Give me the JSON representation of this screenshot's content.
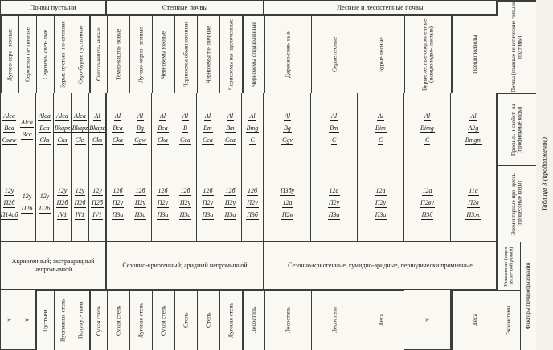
{
  "caption": "Таблица 3 (продолжение)",
  "groups": [
    {
      "label": "Почвы пустыни",
      "col_span": 6
    },
    {
      "label": "Степные почвы",
      "col_span": 7
    },
    {
      "label": "Лесные и лесостепные почвы",
      "col_span": 5
    }
  ],
  "stub": {
    "soils": "Почвы (главные генетические типы и подтипы)",
    "profile": "Профиль и свойст- ва (профильные коды)",
    "processes": "Элементарные про- цессы (процессные коды)",
    "regime": "Увлажнение (водно-тепло- вой режим)",
    "ecosystems": "Экосистемы",
    "factors": "Факторы почвообразования"
  },
  "regimes": [
    "Акриогенный; экстрааридный непромывной",
    "Сезонно-криогенный; аридный непромывной",
    "Сезонно-криогенные, гумидно-аридные, периодически промывные"
  ],
  "columns": [
    {
      "name": "Лугово-серо- земные",
      "profile": [
        "Alca",
        "Bca",
        "Csaw"
      ],
      "processes": [
        "12у",
        "П2б",
        "П14аб"
      ],
      "ecosystem": "»"
    },
    {
      "name": "Сероземы ти- пичные",
      "profile": [
        "Alca",
        "Bca"
      ],
      "processes": [
        "12у",
        "П2б"
      ],
      "ecosystem": "»"
    },
    {
      "name": "Сероземы свет- лые",
      "profile": [
        "Alca",
        "Bca",
        "Cks"
      ],
      "processes": [
        "12у",
        "П2б"
      ],
      "ecosystem": "Пустыня"
    },
    {
      "name": "Бурые пустын- но-степные",
      "profile": [
        "Alca",
        "Bkapz",
        "Cks"
      ],
      "processes": [
        "12у",
        "П2б",
        "IV1"
      ],
      "ecosystem": "Пустынная степь"
    },
    {
      "name": "Серо-бурые пустынные",
      "profile": [
        "Alca",
        "Bkapz",
        "Cks"
      ],
      "processes": [
        "12у",
        "П2б",
        "IV1"
      ],
      "ecosystem": "Полупус- тыня"
    },
    {
      "name": "Светло-кашта- новые",
      "profile": [
        "Al",
        "Bkapz",
        "Cks"
      ],
      "processes": [
        "12у",
        "П2б",
        "IV1"
      ],
      "ecosystem": "Сухая степь"
    },
    {
      "name": "Темно-кашта- новые",
      "profile": [
        "Al",
        "Bca",
        "Cka"
      ],
      "processes": [
        "12б",
        "П2у",
        "П3а"
      ],
      "ecosystem": "Сухая степь"
    },
    {
      "name": "Лугово-черно- земные",
      "profile": [
        "Al",
        "Bg",
        "Cgw"
      ],
      "processes": [
        "12б",
        "П2у",
        "П3а"
      ],
      "ecosystem": "Луговая степь"
    },
    {
      "name": "Черноземы южные",
      "profile": [
        "Al",
        "Bca",
        "Cka"
      ],
      "processes": [
        "12б",
        "П2у",
        "П3а"
      ],
      "ecosystem": "Сухая степь"
    },
    {
      "name": "Черноземы обыкновенные",
      "profile": [
        "Al",
        "B",
        "Cca"
      ],
      "processes": [
        "12б",
        "П2у",
        "П3а"
      ],
      "ecosystem": "Степь"
    },
    {
      "name": "Черноземы ти- пичные",
      "profile": [
        "Al",
        "Bm",
        "Cca"
      ],
      "processes": [
        "12б",
        "П2у",
        "П3а"
      ],
      "ecosystem": "Степь"
    },
    {
      "name": "Черноземы вы- щелоченные",
      "profile": [
        "Al",
        "Bm",
        "Cca"
      ],
      "processes": [
        "12б",
        "П2у",
        "П3а"
      ],
      "ecosystem": "Луговая степь"
    },
    {
      "name": "Черноземы оподзоленные",
      "profile": [
        "Al",
        "Bmg",
        "C"
      ],
      "processes": [
        "12б",
        "П2у",
        "П3б"
      ],
      "ecosystem": "Лесостепь"
    },
    {
      "name": "Дерново-глее- вые",
      "profile": [
        "Al",
        "Bg",
        "Cgv"
      ],
      "processes": [
        "П3бу",
        "12а",
        "П2в"
      ],
      "ecosystem": "Лесостепь"
    },
    {
      "name": "Серые лесные",
      "profile": [
        "Al",
        "Bm",
        "C"
      ],
      "processes": [
        "12а",
        "П2у",
        "П3а"
      ],
      "ecosystem": "Лесостепи"
    },
    {
      "name": "Бурые лесные",
      "profile": [
        "Al",
        "Bim",
        "C"
      ],
      "processes": [
        "12а",
        "П2у",
        "П3а"
      ],
      "ecosystem": "Леса"
    },
    {
      "name": "Бурые лесные оподзоленные (псевдоподзо- листые)",
      "profile": [
        "Al",
        "Bimg",
        "C"
      ],
      "processes": [
        "12а",
        "П2ву",
        "П3б"
      ],
      "ecosystem": "»"
    },
    {
      "name": "Псевдоподзолы",
      "profile": [
        "Al",
        "A2g",
        "Bmgm"
      ],
      "processes": [
        "11а",
        "П2в",
        "П3ж"
      ],
      "ecosystem": "Леса"
    }
  ]
}
